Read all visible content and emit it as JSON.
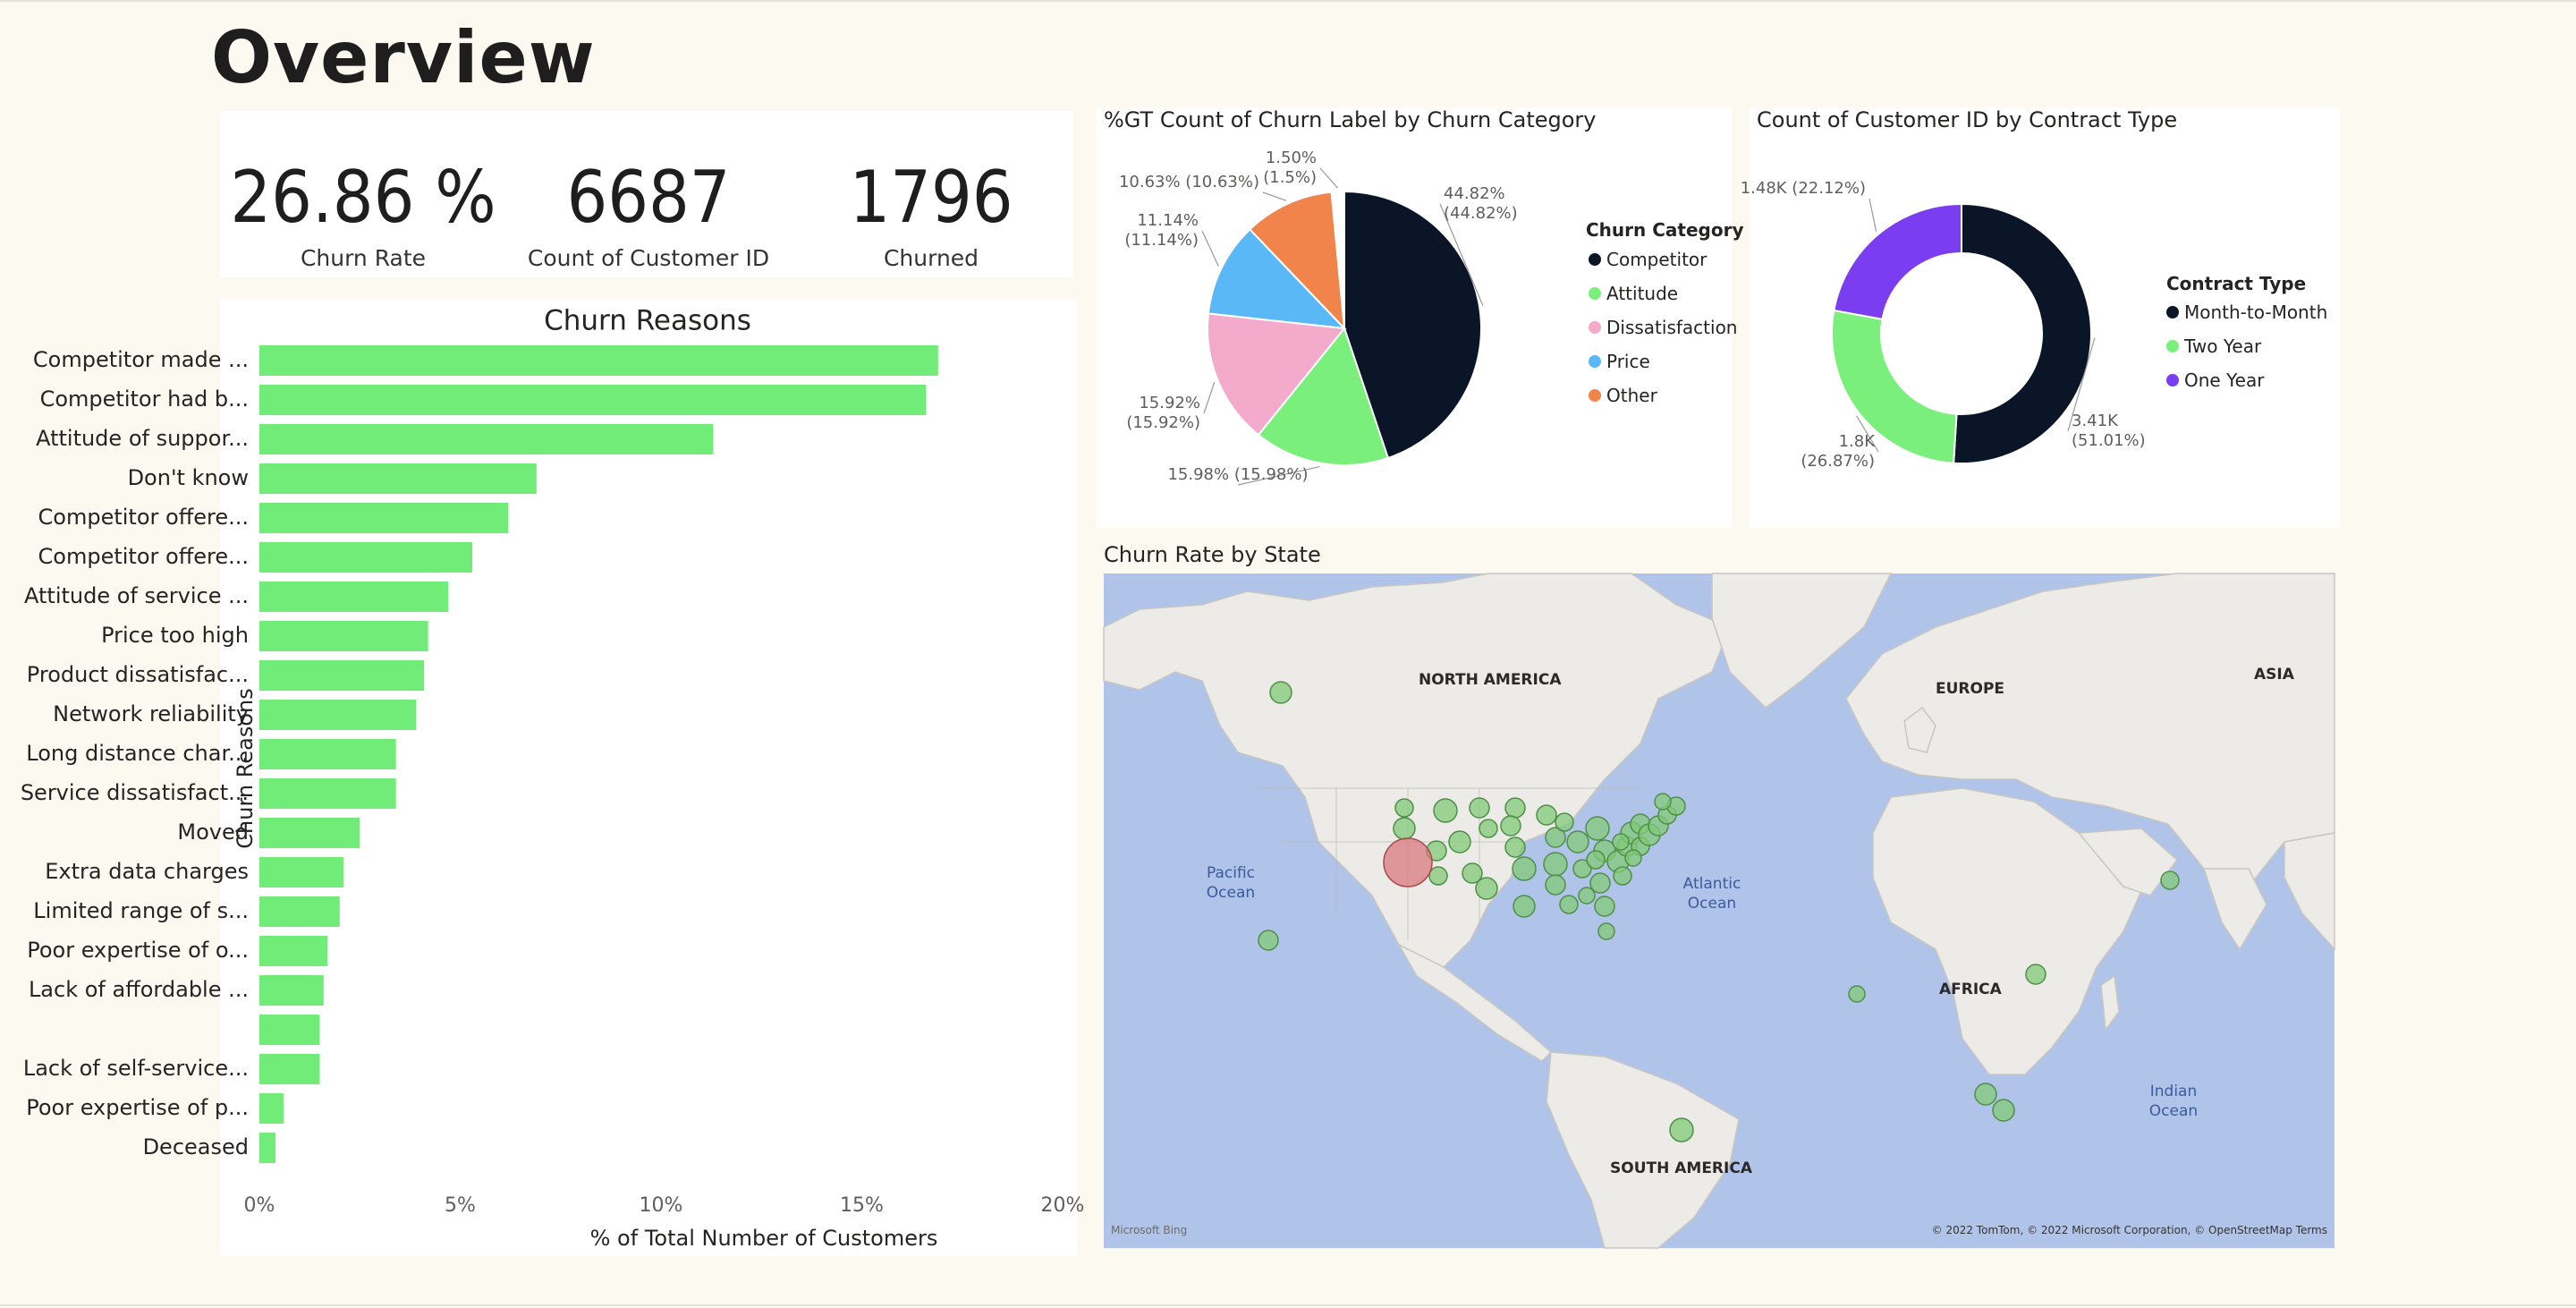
{
  "page": {
    "title": "Overview"
  },
  "kpis": [
    {
      "value": "26.86 %",
      "label": "Churn Rate"
    },
    {
      "value": "6687",
      "label": "Count of Customer ID"
    },
    {
      "value": "1796",
      "label": "Churned"
    }
  ],
  "colors": {
    "bar": "#71ec79",
    "competitor": "#0a1528",
    "attitude": "#7bef7b",
    "dissatisfaction": "#f4aacb",
    "price": "#5bb8f6",
    "other": "#f0844a",
    "month_to_month": "#0a1528",
    "two_year": "#7bef7b",
    "one_year": "#7a3df0",
    "map_water": "#b0c4ea",
    "map_land": "#ecebe8",
    "bubble_green": "#82c978",
    "bubble_red": "#d97a7e"
  },
  "chart_data": [
    {
      "id": "churn-reasons",
      "type": "bar",
      "orientation": "horizontal",
      "title": "Churn Reasons",
      "xlabel": "% of Total Number of Customers",
      "ylabel": "Churn Reasons",
      "xlim": [
        0,
        20
      ],
      "xticks": [
        "0%",
        "5%",
        "10%",
        "15%",
        "20%"
      ],
      "grid": false,
      "categories": [
        "Competitor made ...",
        "Competitor had b...",
        "Attitude of suppor...",
        "Don't know",
        "Competitor offere...",
        "Competitor offere...",
        "Attitude of service ...",
        "Price too high",
        "Product dissatisfac...",
        "Network reliability",
        "Long distance char...",
        "Service dissatisfact...",
        "Moved",
        "Extra data charges",
        "Limited range of s...",
        "Poor expertise of o...",
        "Lack of affordable ...",
        "",
        "Lack of self-service...",
        "Poor expertise of p...",
        "Deceased"
      ],
      "values": [
        16.9,
        16.6,
        11.3,
        6.9,
        6.2,
        5.3,
        4.7,
        4.2,
        4.1,
        3.9,
        3.4,
        3.4,
        2.5,
        2.1,
        2.0,
        1.7,
        1.6,
        1.5,
        1.5,
        0.6,
        0.4
      ]
    },
    {
      "id": "churn-category",
      "type": "pie",
      "title": "%GT Count of Churn Label by Churn Category",
      "legend_title": "Churn Category",
      "legend_position": "right",
      "series": [
        {
          "name": "Competitor",
          "value": 44.82,
          "label": "44.82%\n(44.82%)"
        },
        {
          "name": "Attitude",
          "value": 15.98,
          "label": "15.98% (15.98%)"
        },
        {
          "name": "Dissatisfaction",
          "value": 15.92,
          "label": "15.92%\n(15.92%)"
        },
        {
          "name": "Price",
          "value": 11.14,
          "label": "11.14%\n(11.14%)"
        },
        {
          "name": "Other",
          "value": 10.63,
          "label": "10.63% (10.63%)"
        },
        {
          "name": "",
          "value": 1.5,
          "label": "1.50%\n(1.5%)"
        }
      ]
    },
    {
      "id": "contract-type",
      "type": "pie",
      "variant": "donut",
      "title": "Count of Customer ID by Contract Type",
      "legend_title": "Contract Type",
      "legend_position": "right",
      "series": [
        {
          "name": "Month-to-Month",
          "value": 3.41,
          "label": "3.41K\n(51.01%)"
        },
        {
          "name": "Two Year",
          "value": 1.8,
          "label": "1.8K\n(26.87%)"
        },
        {
          "name": "One Year",
          "value": 1.48,
          "label": "1.48K (22.12%)"
        }
      ]
    }
  ],
  "map": {
    "title": "Churn Rate by State",
    "labels": [
      "NORTH AMERICA",
      "EUROPE",
      "ASIA",
      "AFRICA",
      "SOUTH AMERICA"
    ],
    "ocean_labels": [
      "Pacific\nOcean",
      "Atlantic\nOcean",
      "Indian\nOcean"
    ],
    "attribution": "© 2022 TomTom, © 2022 Microsoft Corporation, © OpenStreetMap  Terms",
    "logo": "Microsoft Bing"
  }
}
